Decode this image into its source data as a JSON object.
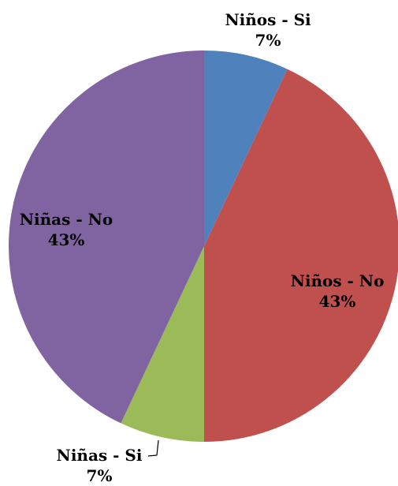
{
  "chart_data": {
    "type": "pie",
    "slices": [
      {
        "label": "Niños - Si",
        "value": 7,
        "display": "7%",
        "color": "#4f81bd"
      },
      {
        "label": "Niños - No",
        "value": 43,
        "display": "43%",
        "color": "#c0504d"
      },
      {
        "label": "Niñas - Si",
        "value": 7,
        "display": "7%",
        "color": "#9bbb59"
      },
      {
        "label": "Niñas - No",
        "value": 43,
        "display": "43%",
        "color": "#8064a2"
      }
    ],
    "title": "",
    "legend": "none",
    "start_angle": "12 o'clock",
    "direction": "clockwise"
  }
}
